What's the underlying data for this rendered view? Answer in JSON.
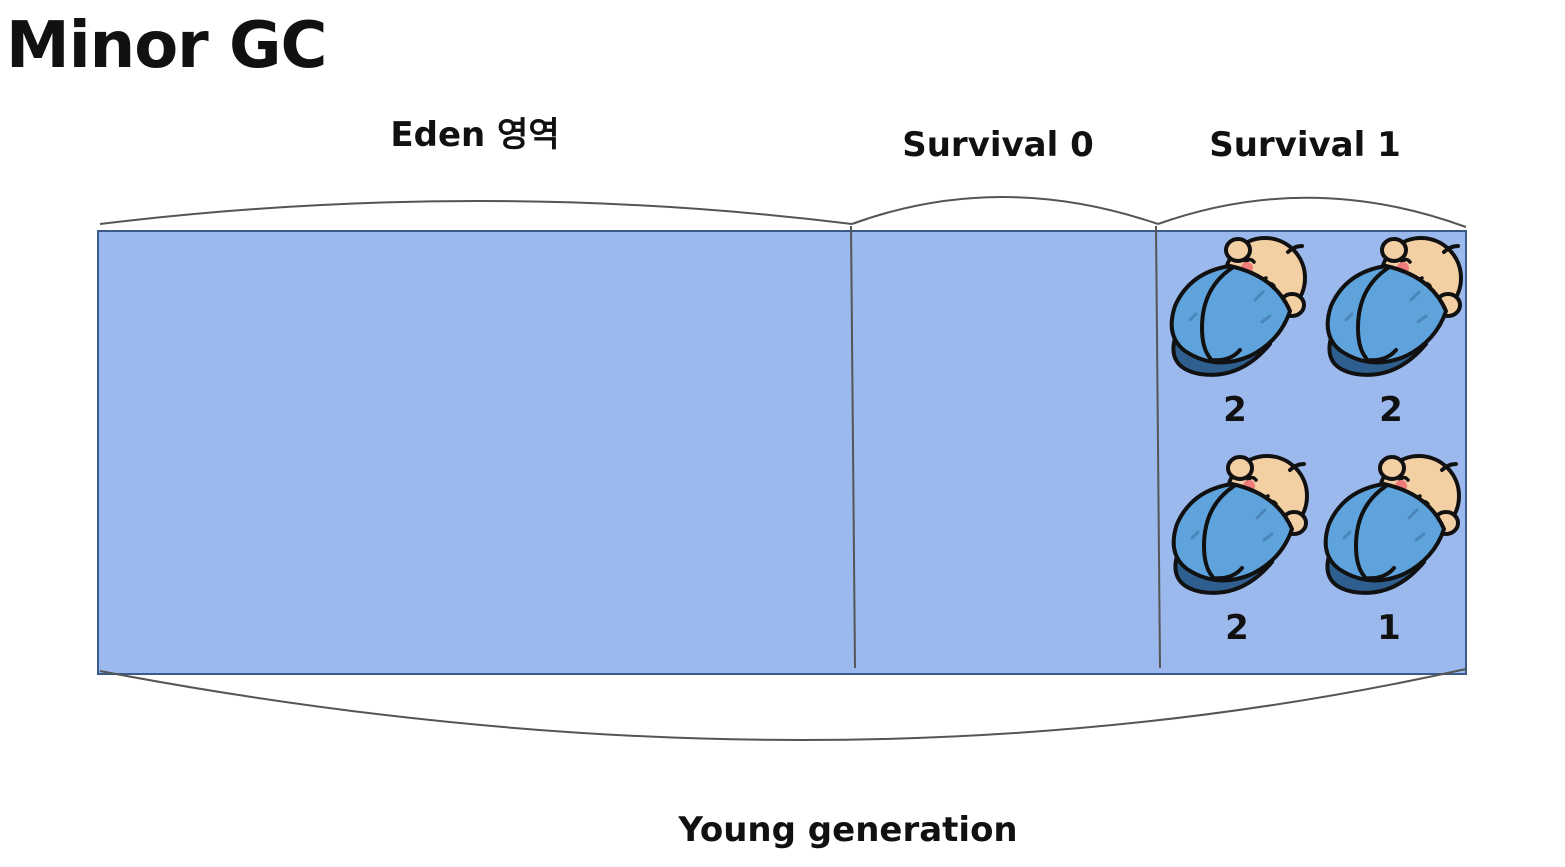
{
  "title": "Minor GC",
  "regions": {
    "eden": "Eden 영역",
    "survival0": "Survival 0",
    "survival1": "Survival 1"
  },
  "generation_label": "Young generation",
  "survivor1_objects": [
    {
      "icon": "baby-icon",
      "age": "2"
    },
    {
      "icon": "baby-icon",
      "age": "2"
    },
    {
      "icon": "baby-icon",
      "age": "2"
    },
    {
      "icon": "baby-icon",
      "age": "1"
    }
  ],
  "colors": {
    "region_fill": "#9cb9ee",
    "region_border": "#3a5a8a",
    "blanket": "#5fa3dc",
    "blanket_dark": "#2f5f8f",
    "skin": "#f3cfa4",
    "cheek": "#f07b7b"
  }
}
